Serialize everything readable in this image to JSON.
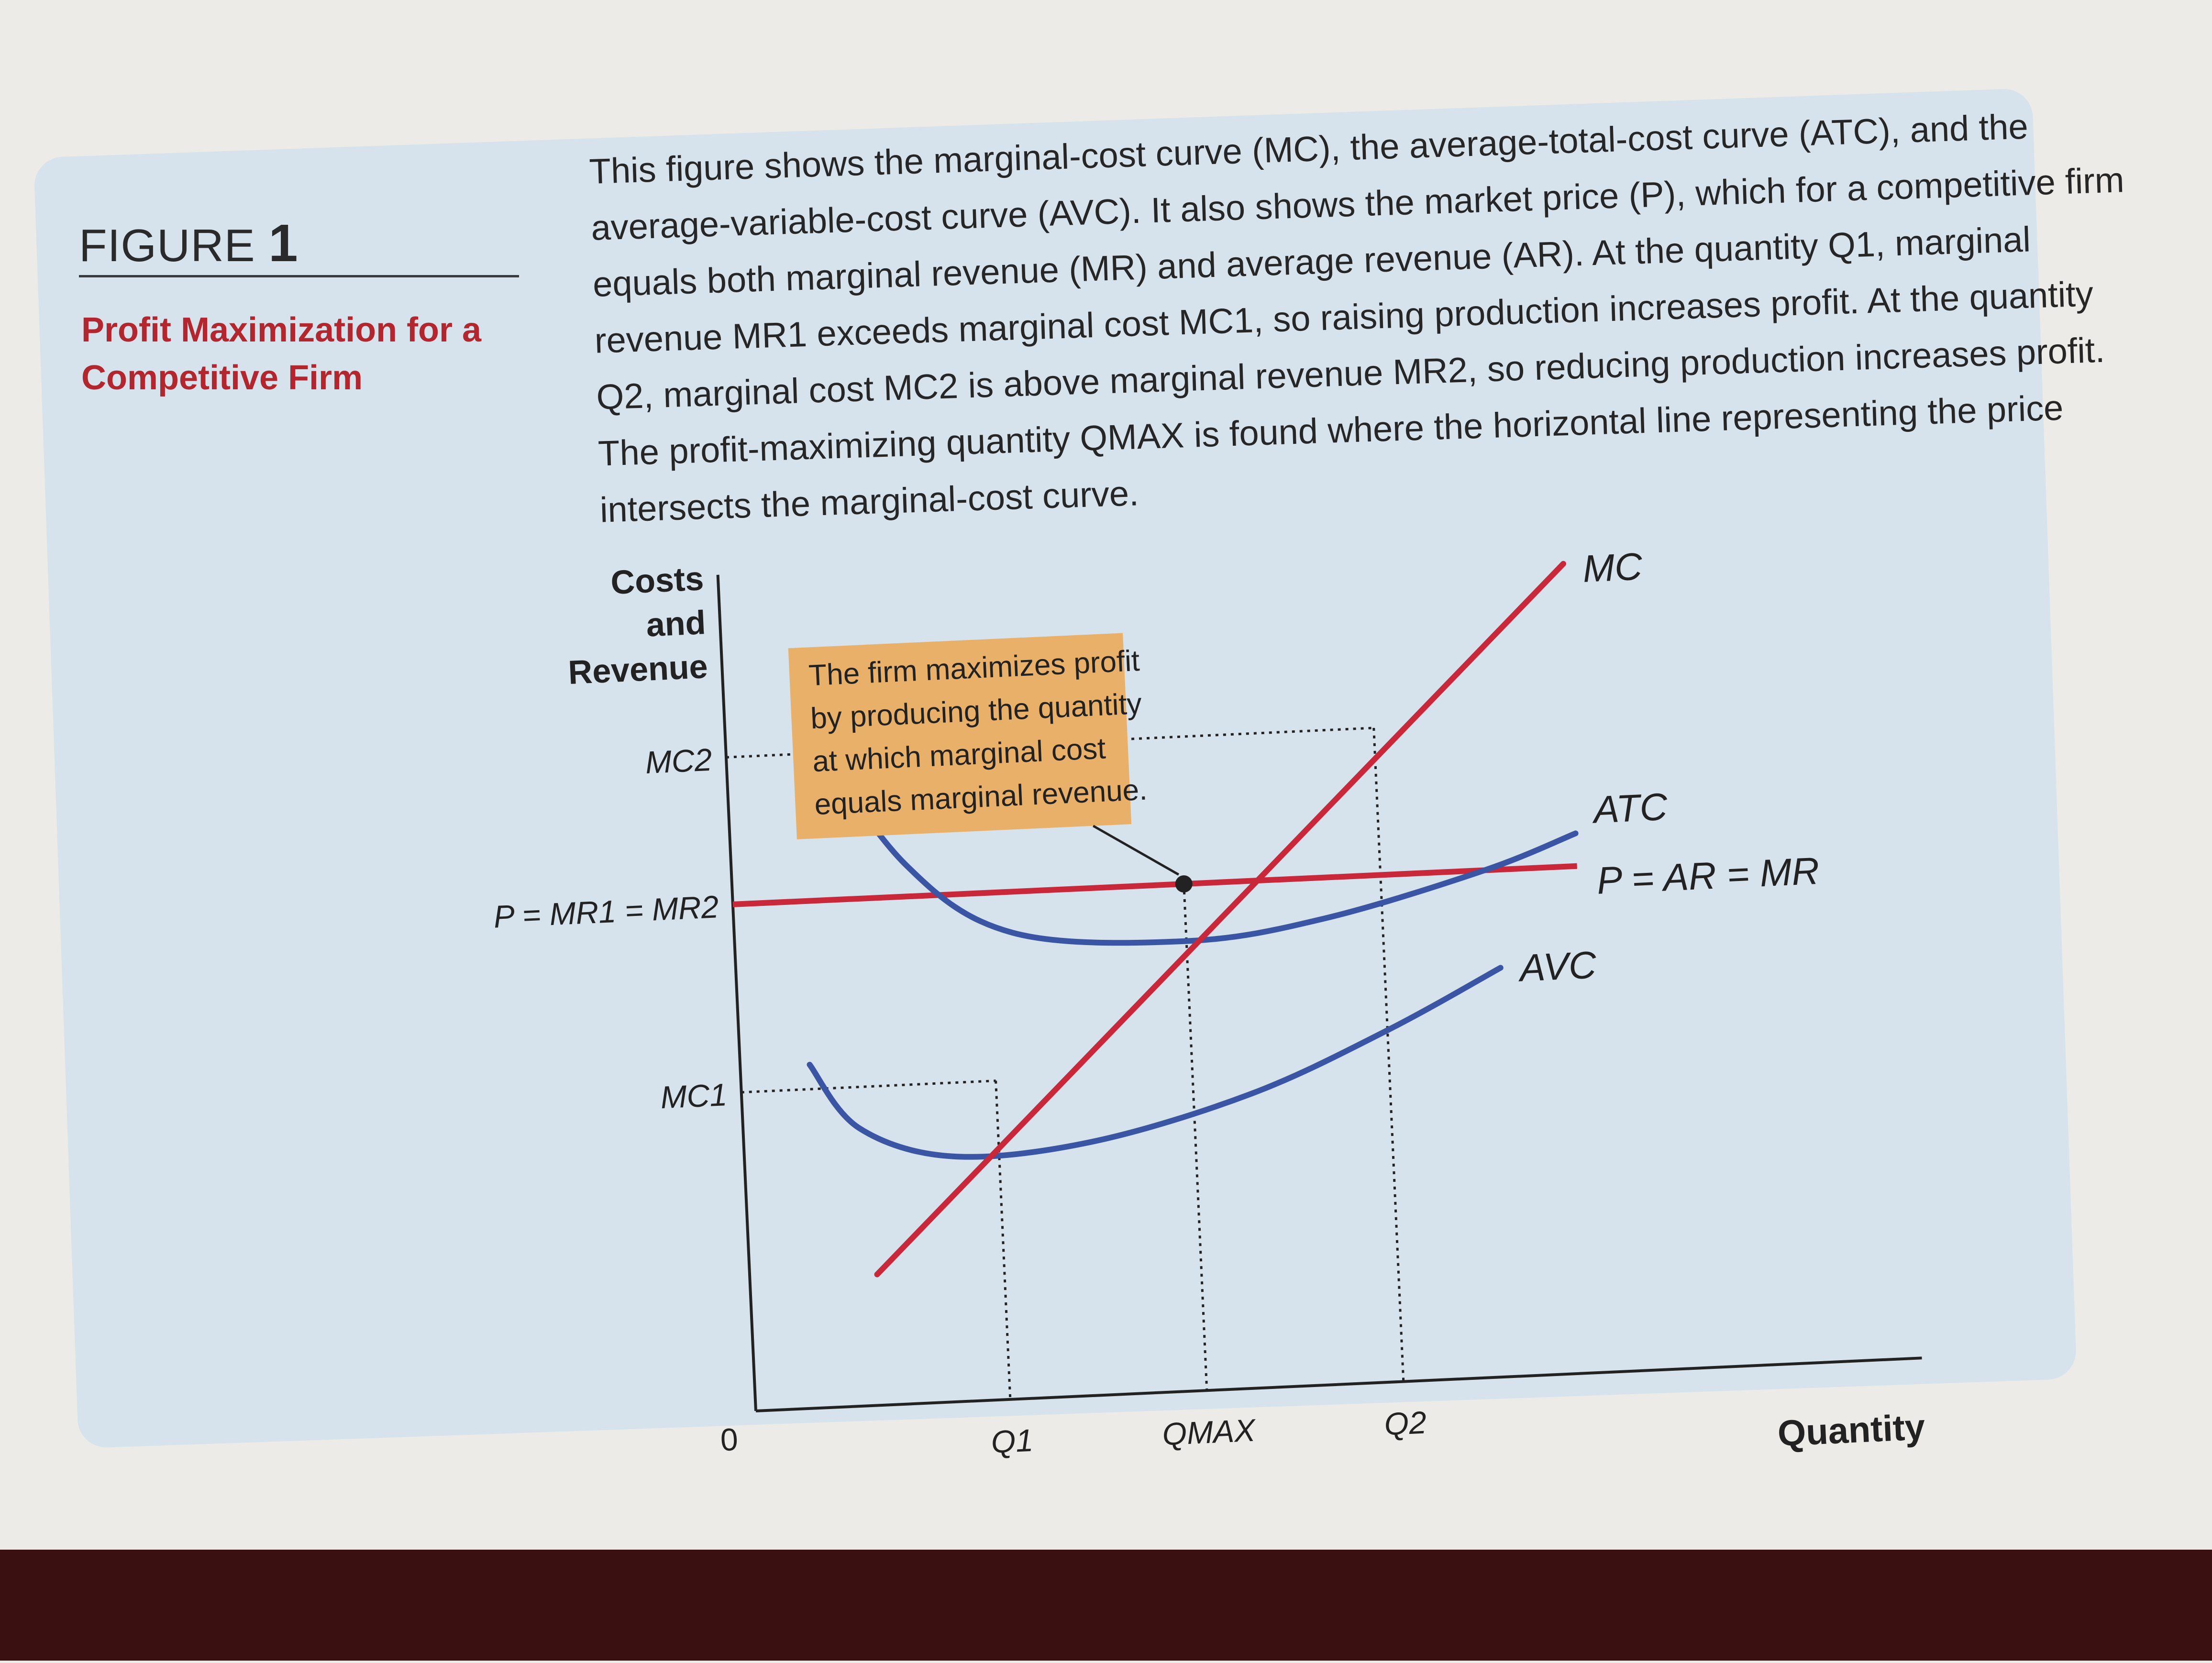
{
  "figure": {
    "label": "FIGURE",
    "number": "1",
    "subtitle": "Profit Maximization for a Competitive Firm",
    "caption": "This figure shows the marginal-cost curve (MC), the average-total-cost curve (ATC), and the average-variable-cost curve (AVC). It also shows the market price (P), which for a competitive firm equals both marginal revenue (MR) and average revenue (AR). At the quantity Q1, marginal revenue MR1 exceeds marginal cost MC1, so raising production increases profit. At the quantity Q2, marginal cost MC2 is above marginal revenue MR2, so reducing production increases profit. The profit-maximizing quantity QMAX is found where the horizontal line representing the price intersects the marginal-cost curve."
  },
  "colors": {
    "mc_line": "#c8283a",
    "cost_curves": "#3a55a4",
    "callout_bg": "#e9b06a",
    "panel_bg": "#d6e3ec"
  },
  "chart_data": {
    "type": "line",
    "title": "",
    "ylabel": "Costs and Revenue",
    "xlabel": "Quantity",
    "origin_label": "0",
    "xlim": [
      0,
      10
    ],
    "ylim": [
      0,
      10
    ],
    "x_ticks": [
      {
        "label": "Q1",
        "value": 2.2
      },
      {
        "label": "QMAX",
        "value": 3.9
      },
      {
        "label": "Q2",
        "value": 5.6
      }
    ],
    "y_ticks": [
      {
        "label": "MC2",
        "value": 8.0
      },
      {
        "label": "P = MR1 = MR2",
        "value": 6.2
      },
      {
        "label": "MC1",
        "value": 3.9
      }
    ],
    "series": [
      {
        "name": "MC",
        "x": [
          1.1,
          2.2,
          3.9,
          5.6,
          7.3
        ],
        "y": [
          1.6,
          3.9,
          6.2,
          8.0,
          9.9
        ]
      },
      {
        "name": "ATC",
        "x": [
          0.7,
          1.5,
          2.4,
          3.9,
          5.1,
          6.5,
          7.3
        ],
        "y": [
          8.3,
          6.6,
          5.7,
          5.5,
          5.7,
          6.2,
          6.6
        ]
      },
      {
        "name": "AVC",
        "x": [
          0.6,
          1.0,
          1.8,
          3.0,
          4.4,
          5.6,
          6.6
        ],
        "y": [
          4.2,
          3.4,
          3.0,
          3.1,
          3.6,
          4.3,
          5.0
        ]
      },
      {
        "name": "P = AR = MR",
        "x": [
          0,
          7.3
        ],
        "y": [
          6.2,
          6.2
        ]
      }
    ],
    "annotation": "The firm maximizes profit by producing the quantity at which marginal cost equals marginal revenue."
  }
}
